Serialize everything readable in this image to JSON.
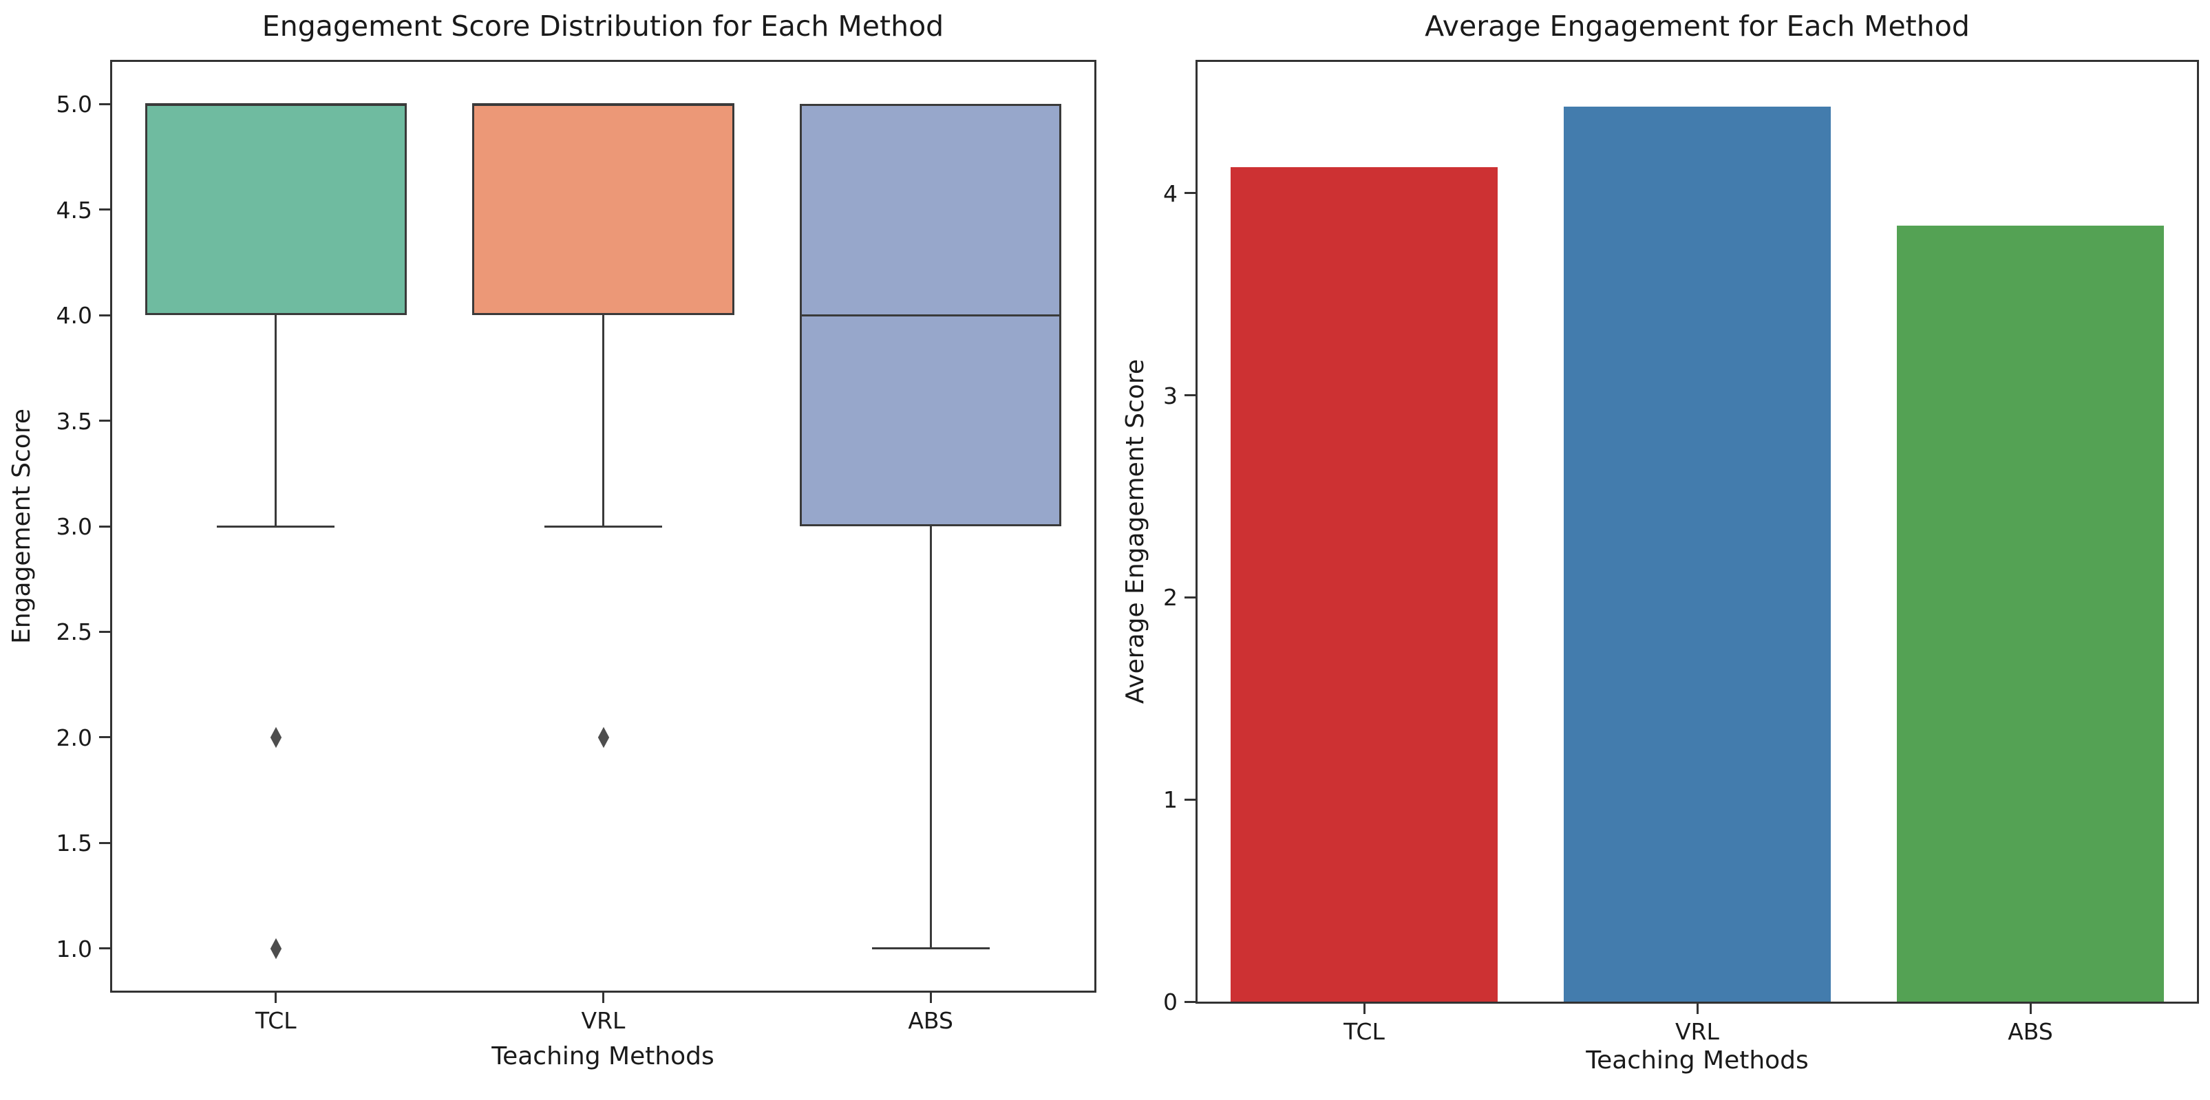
{
  "figure": {
    "background": "#ffffff",
    "text_color": "#1a1a1a",
    "spine_color": "#333333",
    "box_edge_color": "#3a3a3a",
    "outlier_marker": "diamond"
  },
  "chart_data": [
    {
      "type": "box",
      "title": "Engagement Score Distribution for Each Method",
      "xlabel": "Teaching Methods",
      "ylabel": "Engagement Score",
      "categories": [
        "TCL",
        "VRL",
        "ABS"
      ],
      "ylim": [
        0.8,
        5.2
      ],
      "yticks": [
        5.0,
        4.5,
        4.0,
        3.5,
        3.0,
        2.5,
        2.0,
        1.5,
        1.0
      ],
      "ytick_labels": [
        "5.0",
        "4.5",
        "4.0",
        "3.5",
        "3.0",
        "2.5",
        "2.0",
        "1.5",
        "1.0"
      ],
      "grid": false,
      "legend": "none",
      "series": [
        {
          "name": "TCL",
          "q1": 4.0,
          "median": 5.0,
          "q3": 5.0,
          "whisker_low": 3.0,
          "whisker_high": 5.0,
          "outliers": [
            2.0,
            1.0
          ],
          "color": "#6fbba0"
        },
        {
          "name": "VRL",
          "q1": 4.0,
          "median": 5.0,
          "q3": 5.0,
          "whisker_low": 3.0,
          "whisker_high": 5.0,
          "outliers": [
            2.0
          ],
          "color": "#ec9877"
        },
        {
          "name": "ABS",
          "q1": 3.0,
          "median": 4.0,
          "q3": 5.0,
          "whisker_low": 1.0,
          "whisker_high": 5.0,
          "outliers": [],
          "color": "#97a7cb"
        }
      ]
    },
    {
      "type": "bar",
      "title": "Average Engagement for Each Method",
      "xlabel": "Teaching Methods",
      "ylabel": "Average Engagement Score",
      "categories": [
        "TCL",
        "VRL",
        "ABS"
      ],
      "values": [
        4.13,
        4.43,
        3.84
      ],
      "colors": [
        "#cd3133",
        "#437cad",
        "#54a254"
      ],
      "ylim": [
        0,
        4.65
      ],
      "yticks": [
        0,
        1,
        2,
        3,
        4
      ],
      "ytick_labels": [
        "0",
        "1",
        "2",
        "3",
        "4"
      ],
      "grid": false,
      "legend": "none"
    }
  ]
}
